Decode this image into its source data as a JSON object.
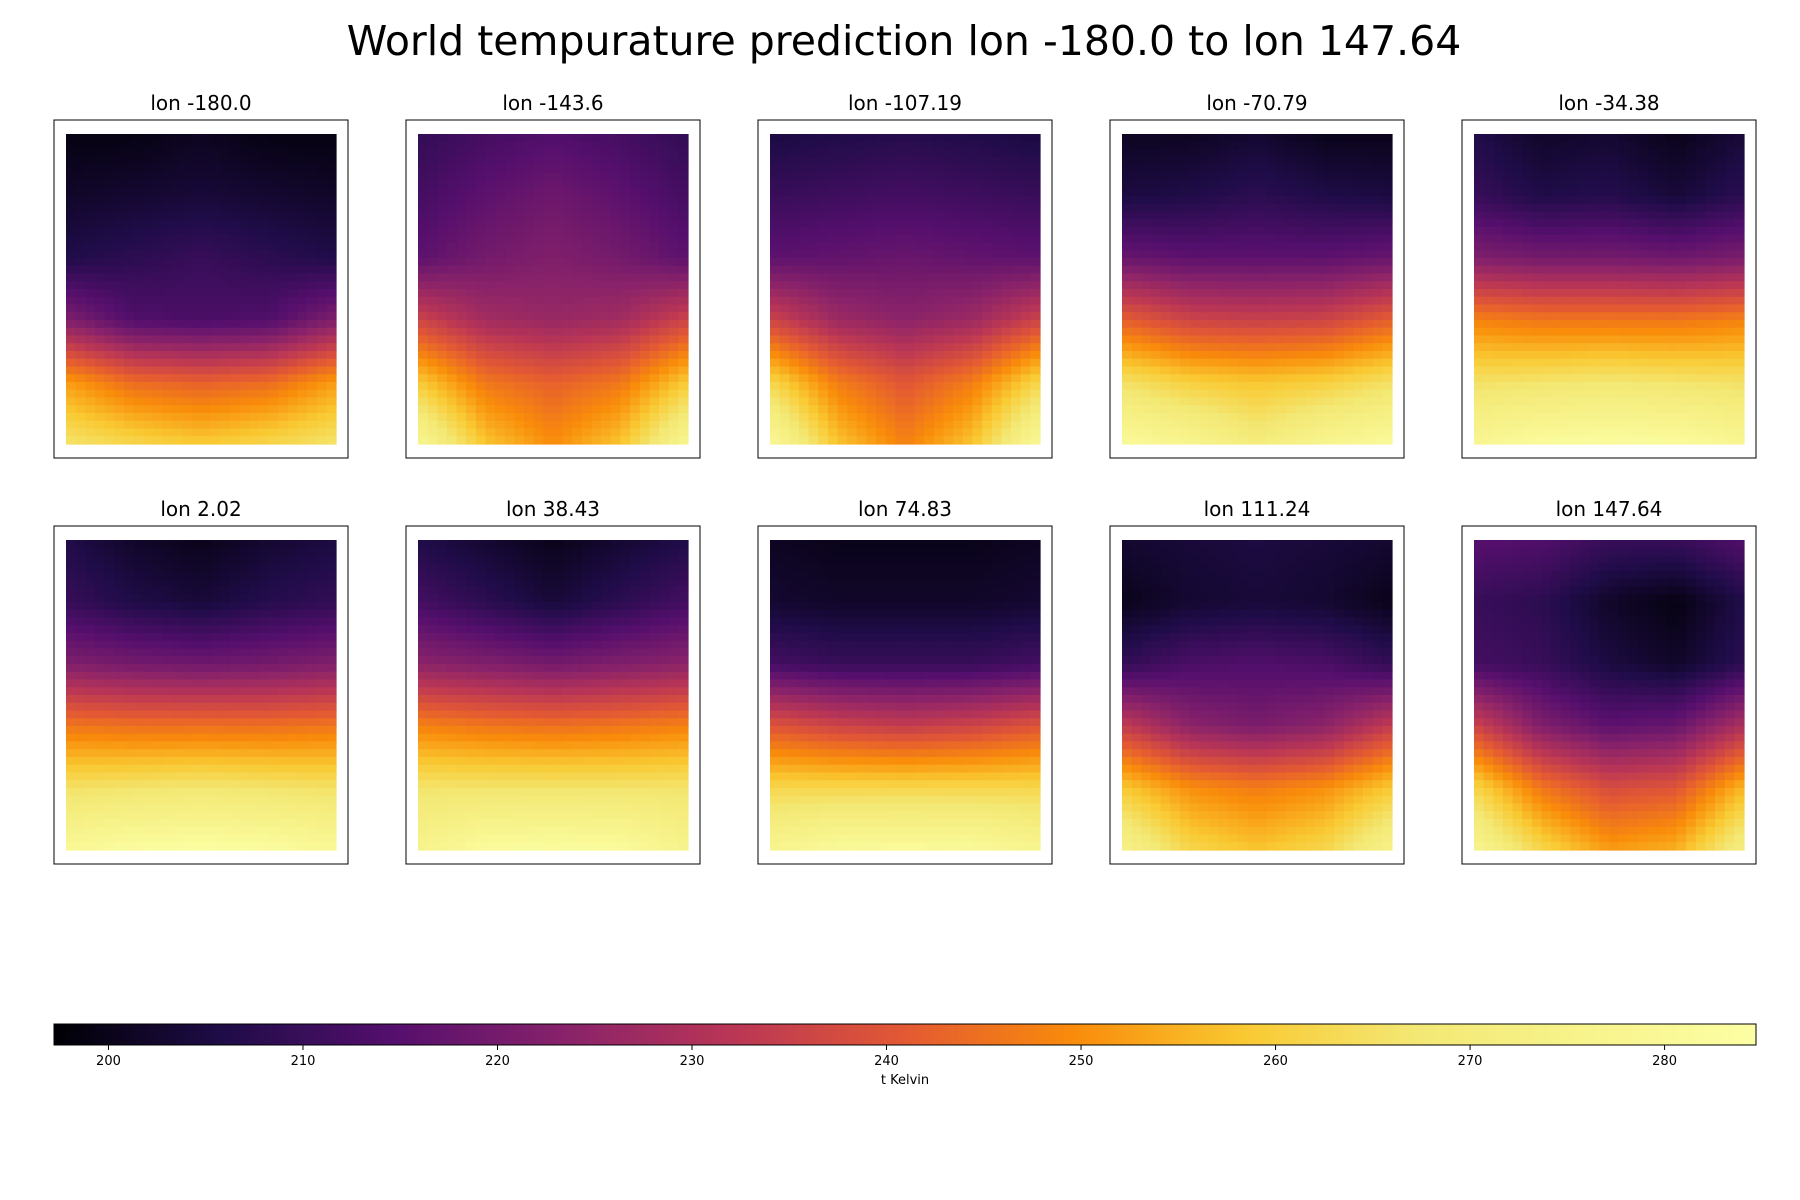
{
  "chart_data": {
    "type": "heatmap",
    "title": "World tempurature prediction lon -180.0 to lon 147.64",
    "colormap": "inferno",
    "colorbar": {
      "label": "t Kelvin",
      "vmin": 197.2,
      "vmax": 284.7,
      "ticks": [
        200,
        210,
        220,
        230,
        240,
        250,
        260,
        270,
        280
      ],
      "orientation": "horizontal",
      "placement": "bottom"
    },
    "grid": false,
    "panels": [
      {
        "title": "lon -180.0",
        "rows": [
          [
            199,
            199,
            201,
            199,
            199
          ],
          [
            202,
            203,
            204,
            203,
            202
          ],
          [
            206,
            208,
            210,
            208,
            206
          ],
          [
            222,
            214,
            213,
            214,
            222
          ],
          [
            252,
            244,
            242,
            244,
            252
          ],
          [
            266,
            262,
            259,
            262,
            266
          ]
        ]
      },
      {
        "title": "lon -143.6",
        "rows": [
          [
            209,
            212,
            214,
            212,
            209
          ],
          [
            212,
            216,
            219,
            216,
            212
          ],
          [
            216,
            220,
            222,
            220,
            216
          ],
          [
            236,
            228,
            226,
            228,
            236
          ],
          [
            259,
            246,
            242,
            246,
            259
          ],
          [
            278,
            258,
            250,
            258,
            278
          ]
        ]
      },
      {
        "title": "lon -107.19",
        "rows": [
          [
            205,
            206,
            207,
            206,
            205
          ],
          [
            210,
            211,
            212,
            211,
            210
          ],
          [
            216,
            217,
            218,
            217,
            216
          ],
          [
            236,
            227,
            224,
            227,
            236
          ],
          [
            262,
            247,
            240,
            247,
            262
          ],
          [
            280,
            258,
            248,
            258,
            280
          ]
        ]
      },
      {
        "title": "lon -70.79",
        "rows": [
          [
            201,
            201,
            203,
            200,
            200
          ],
          [
            205,
            206,
            208,
            206,
            205
          ],
          [
            218,
            216,
            216,
            216,
            218
          ],
          [
            242,
            236,
            235,
            236,
            242
          ],
          [
            265,
            260,
            258,
            260,
            265
          ],
          [
            281,
            277,
            270,
            277,
            281
          ]
        ]
      },
      {
        "title": "lon -34.38",
        "rows": [
          [
            206,
            202,
            203,
            200,
            204
          ],
          [
            210,
            206,
            207,
            204,
            208
          ],
          [
            222,
            220,
            220,
            219,
            221
          ],
          [
            248,
            246,
            246,
            246,
            248
          ],
          [
            265,
            266,
            267,
            266,
            265
          ],
          [
            278,
            282,
            283,
            282,
            278
          ]
        ]
      },
      {
        "title": "lon 2.02",
        "rows": [
          [
            206,
            202,
            200,
            203,
            205
          ],
          [
            210,
            206,
            204,
            207,
            209
          ],
          [
            222,
            220,
            219,
            220,
            222
          ],
          [
            246,
            245,
            245,
            245,
            246
          ],
          [
            265,
            266,
            267,
            266,
            265
          ],
          [
            280,
            283,
            284,
            283,
            280
          ]
        ]
      },
      {
        "title": "lon 38.43",
        "rows": [
          [
            206,
            203,
            200,
            203,
            206
          ],
          [
            212,
            208,
            204,
            208,
            212
          ],
          [
            224,
            222,
            220,
            222,
            224
          ],
          [
            248,
            246,
            245,
            246,
            248
          ],
          [
            266,
            266,
            266,
            266,
            266
          ],
          [
            276,
            282,
            283,
            282,
            276
          ]
        ]
      },
      {
        "title": "lon 74.83",
        "rows": [
          [
            201,
            200,
            200,
            200,
            201
          ],
          [
            203,
            202,
            202,
            202,
            203
          ],
          [
            212,
            210,
            210,
            210,
            212
          ],
          [
            240,
            236,
            234,
            236,
            240
          ],
          [
            262,
            262,
            262,
            262,
            262
          ],
          [
            277,
            281,
            282,
            281,
            277
          ]
        ]
      },
      {
        "title": "lon 111.24",
        "rows": [
          [
            203,
            204,
            205,
            204,
            203
          ],
          [
            200,
            203,
            204,
            203,
            200
          ],
          [
            209,
            213,
            214,
            213,
            209
          ],
          [
            234,
            224,
            221,
            224,
            234
          ],
          [
            259,
            250,
            247,
            250,
            259
          ],
          [
            275,
            262,
            258,
            262,
            275
          ]
        ]
      },
      {
        "title": "lon 147.64",
        "rows": [
          [
            215,
            214,
            210,
            210,
            214
          ],
          [
            210,
            208,
            202,
            199,
            206
          ],
          [
            212,
            210,
            205,
            202,
            208
          ],
          [
            236,
            222,
            216,
            218,
            230
          ],
          [
            262,
            246,
            238,
            240,
            256
          ],
          [
            277,
            262,
            252,
            255,
            272
          ]
        ]
      }
    ]
  }
}
